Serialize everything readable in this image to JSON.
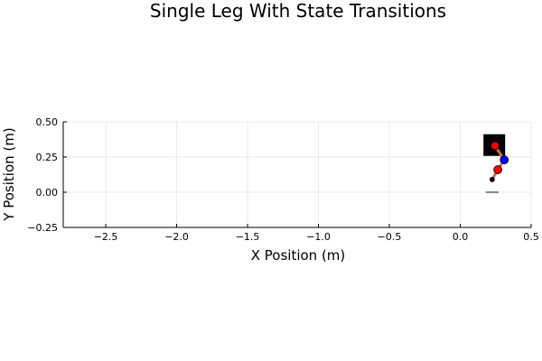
{
  "chart_data": {
    "type": "scatter",
    "title": "Single Leg With State Transitions",
    "xlabel": "X Position (m)",
    "ylabel": "Y Position (m)",
    "xlim": [
      -2.8,
      0.5
    ],
    "ylim": [
      -0.25,
      0.5
    ],
    "xticks": [
      -2.5,
      -2.0,
      -1.5,
      -1.0,
      -0.5,
      0.0,
      0.5
    ],
    "xtick_labels": [
      "−2.5",
      "−2.0",
      "−1.5",
      "−1.0",
      "−0.5",
      "0.0",
      "0.5"
    ],
    "yticks": [
      -0.25,
      0.0,
      0.25,
      0.5
    ],
    "ytick_labels": [
      "−0.25",
      "0.00",
      "0.25",
      "0.50"
    ],
    "grid": true,
    "legend": "none",
    "elements": {
      "body": {
        "x": 0.24,
        "y": 0.335,
        "shape": "square",
        "color": "#000000"
      },
      "hip": {
        "x": 0.245,
        "y": 0.33,
        "color": "#ff0000"
      },
      "knee": {
        "x": 0.31,
        "y": 0.23,
        "color": "#0000ff"
      },
      "lower_joint": {
        "x": 0.265,
        "y": 0.16,
        "color": "#ff0000"
      },
      "foot": {
        "x": 0.225,
        "y": 0.09,
        "color": "#000000"
      },
      "ground_segment": {
        "x": [
          0.18,
          0.27
        ],
        "y": [
          0.0,
          0.0
        ],
        "color": "#888888"
      },
      "leg_color": "#c8734a"
    }
  }
}
